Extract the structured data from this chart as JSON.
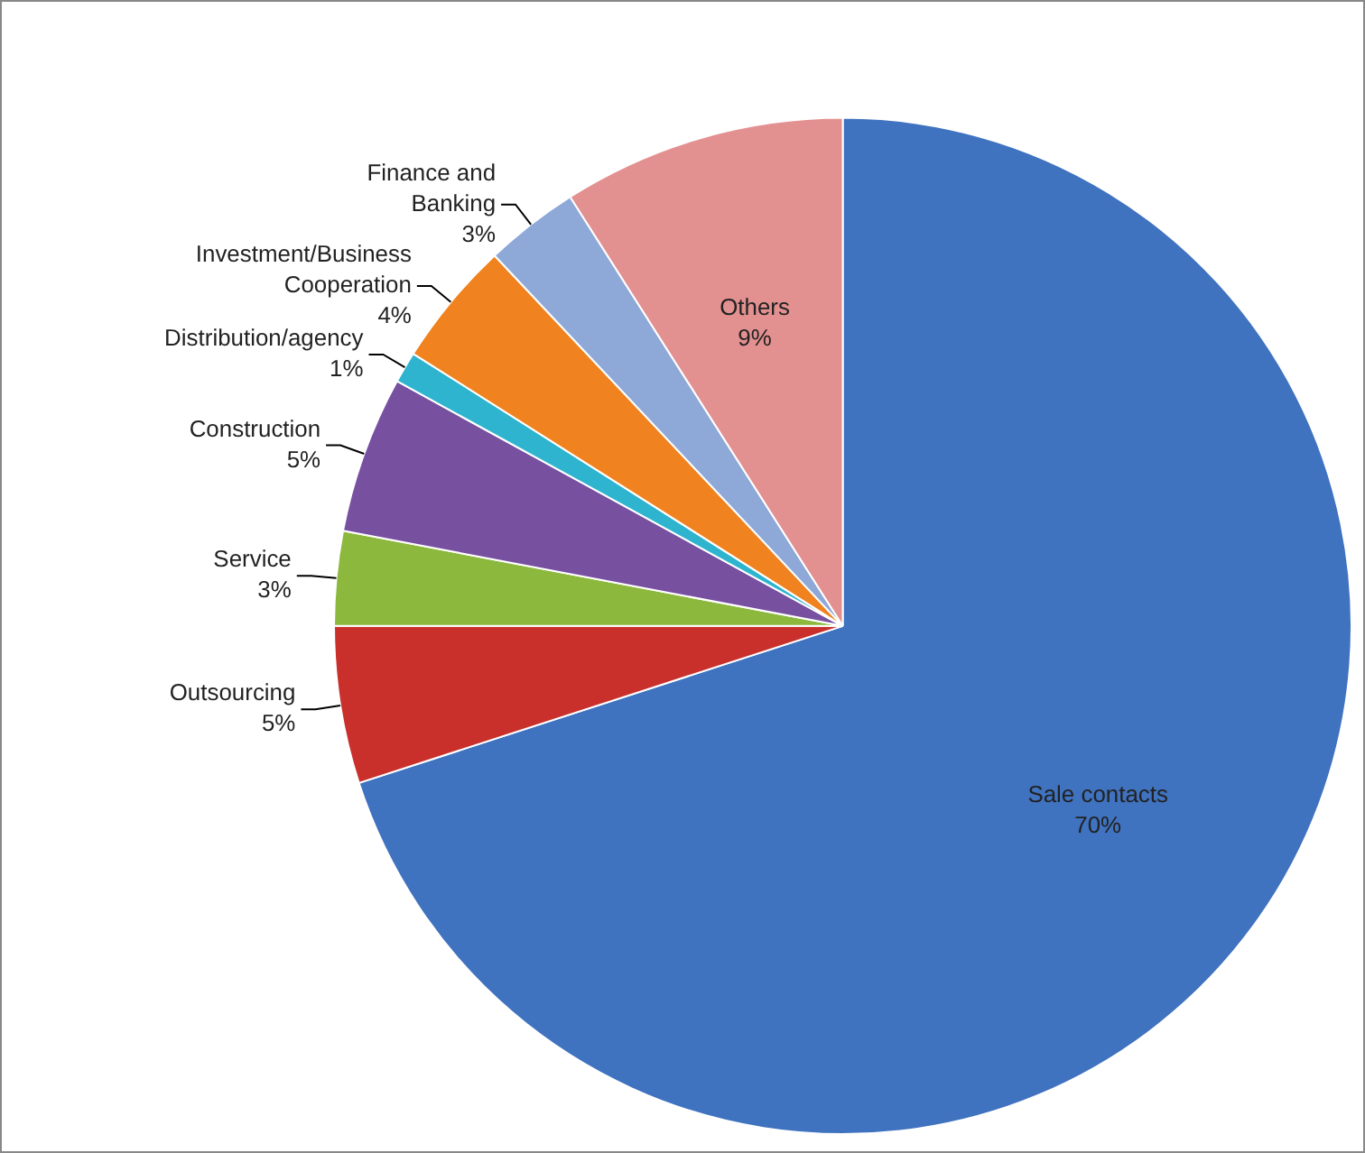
{
  "chart_data": {
    "type": "pie",
    "categories": [
      "Sale contacts",
      "Outsourcing",
      "Service",
      "Construction",
      "Distribution/agency",
      "Investment/Business Cooperation",
      "Finance and Banking",
      "Others"
    ],
    "values": [
      70,
      5,
      3,
      5,
      1,
      4,
      3,
      9
    ],
    "value_labels": [
      "70%",
      "5%",
      "3%",
      "5%",
      "1%",
      "4%",
      "3%",
      "9%"
    ],
    "colors": [
      "#3f72bf",
      "#c9302c",
      "#8cb83d",
      "#7750a0",
      "#2fb4cf",
      "#f0821f",
      "#8ea8d8",
      "#e39090"
    ],
    "legend": false
  }
}
